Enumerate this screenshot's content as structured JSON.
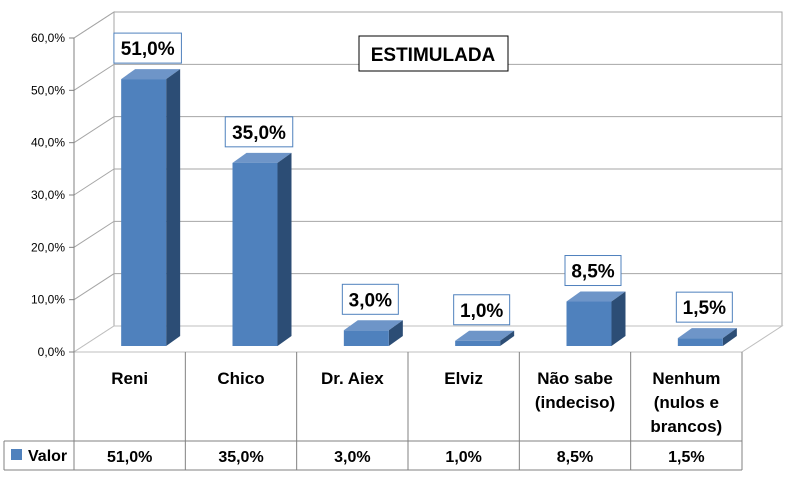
{
  "chart_data": {
    "type": "bar",
    "title": "ESTIMULADA",
    "categories": [
      [
        "Reni"
      ],
      [
        "Chico"
      ],
      [
        "Dr. Aiex"
      ],
      [
        "Elviz"
      ],
      [
        "Não sabe",
        "(indeciso)"
      ],
      [
        "Nenhum",
        "(nulos e",
        "brancos)"
      ]
    ],
    "series": [
      {
        "name": "Valor",
        "values": [
          51.0,
          35.0,
          3.0,
          1.0,
          8.5,
          1.5
        ],
        "labels": [
          "51,0%",
          "35,0%",
          "3,0%",
          "1,0%",
          "8,5%",
          "1,5%"
        ],
        "color": "#4f81bd"
      }
    ],
    "yticks": [
      "0,0%",
      "10,0%",
      "20,0%",
      "30,0%",
      "40,0%",
      "50,0%",
      "60,0%"
    ],
    "ylim": [
      0,
      60
    ],
    "grid": true,
    "data_table": true,
    "colors": {
      "bar_front": "#4f81bd",
      "bar_side": "#2c4d75",
      "bar_top": "#6e95c8",
      "wall": "#a6a6a6",
      "floor": "#bfbfbf"
    }
  }
}
